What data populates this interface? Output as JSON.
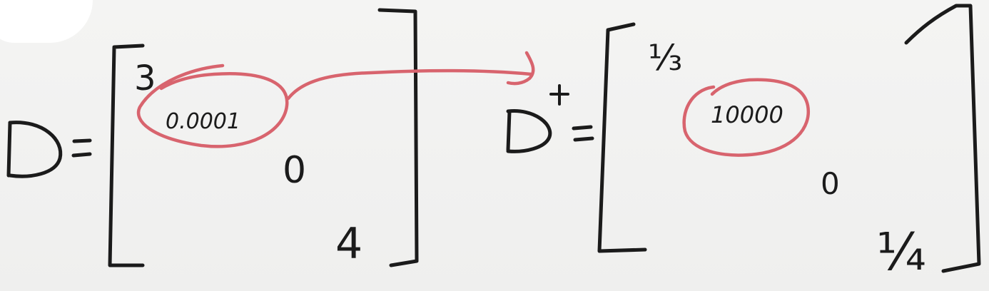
{
  "colors": {
    "background": "#f2f2f1",
    "ink": "#1b1b1b",
    "highlight": "#d8646e"
  },
  "left_matrix": {
    "name": "D",
    "equals": "=",
    "entries": {
      "top_left": "3",
      "circled": "0.0001",
      "middle": "0",
      "bottom_right": "4"
    }
  },
  "right_matrix": {
    "name": "D",
    "superscript": "+",
    "equals": "=",
    "entries": {
      "top_left": "⅓",
      "circled": "10000",
      "middle": "0",
      "bottom_right": "¼"
    }
  }
}
